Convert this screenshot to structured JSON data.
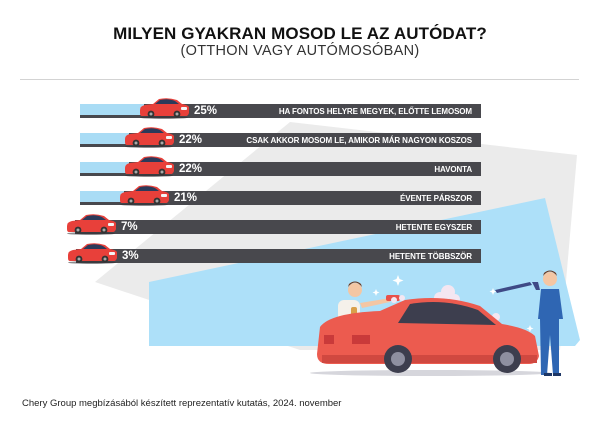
{
  "header": {
    "title": "MILYEN GYAKRAN MOSOD LE AZ AUTÓDAT?",
    "subtitle": "(OTTHON VAGY AUTÓMOSÓBAN)"
  },
  "chart_data": {
    "type": "bar",
    "orientation": "horizontal",
    "title": "MILYEN GYAKRAN MOSOD LE AZ AUTÓDAT?",
    "subtitle": "(OTTHON VAGY AUTÓMOSÓBAN)",
    "xlabel": "",
    "ylabel": "",
    "unit": "%",
    "categories": [
      "HA FONTOS HELYRE MEGYEK, ELŐTTE LEMOSOM",
      "CSAK AKKOR MOSOM LE, AMIKOR MÁR NAGYON KOSZOS",
      "HAVONTA",
      "ÉVENTE PÁRSZOR",
      "HETENTE EGYSZER",
      "HETENTE TÖBBSZÖR"
    ],
    "values": [
      25,
      22,
      22,
      21,
      7,
      3
    ],
    "value_labels": [
      "25%",
      "22%",
      "22%",
      "21%",
      "7%",
      "3%"
    ],
    "xlim": [
      0,
      25
    ],
    "grid": false,
    "legend": "none",
    "marker_icon": "car-icon"
  },
  "colors": {
    "bar_dark": "#48484d",
    "bar_fill": "#a9dcf5",
    "car_red": "#e8403a",
    "bg_gray": "#ebebeb",
    "bg_blue": "#ade0f9"
  },
  "footer": {
    "source": "Chery Group megbízásából készített reprezentatív kutatás, 2024. november"
  },
  "illustration": {
    "description": "car-wash-scene",
    "icons": [
      "person-with-sponge-icon",
      "red-car-icon",
      "person-with-pressure-washer-icon",
      "soap-foam-icon",
      "sparkle-icon"
    ]
  }
}
